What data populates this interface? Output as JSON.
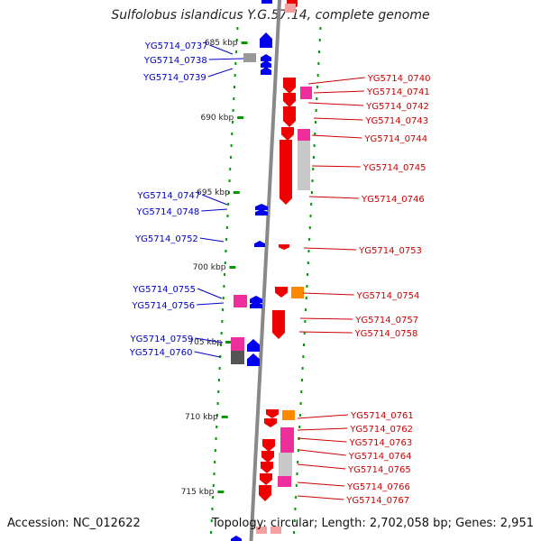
{
  "title": "Sulfolobus islandicus Y.G.57.14, complete genome",
  "footer": {
    "accession": "Accession: NC_012622",
    "summary": "Topology: circular; Length: 2,702,058 bp; Genes: 2,951"
  },
  "colors": {
    "plus_strand_label": "#0000cc",
    "minus_strand_label": "#cc0000",
    "plus_gene": "#0000ee",
    "minus_gene": "#ee0000",
    "rna_pink": "#ee2e9a",
    "misc_gray": "#999999",
    "orange": "#ff8800",
    "tick_green": "#009900",
    "backbone": "#888888"
  },
  "scale_labels": [
    "685 kbp",
    "690 kbp",
    "695 kbp",
    "700 kbp",
    "705 kbp",
    "710 kbp",
    "715 kbp"
  ],
  "left_genes": [
    "YG5714_0737",
    "YG5714_0738",
    "YG5714_0739",
    "YG5714_0747",
    "YG5714_0748",
    "YG5714_0752",
    "YG5714_0755",
    "YG5714_0756",
    "YG5714_0759",
    "YG5714_0760"
  ],
  "right_genes": [
    "YG5714_0740",
    "YG5714_0741",
    "YG5714_0742",
    "YG5714_0743",
    "YG5714_0744",
    "YG5714_0745",
    "YG5714_0746",
    "YG5714_0753",
    "YG5714_0754",
    "YG5714_0757",
    "YG5714_0758",
    "YG5714_0761",
    "YG5714_0762",
    "YG5714_0763",
    "YG5714_0764",
    "YG5714_0765",
    "YG5714_0766",
    "YG5714_0767"
  ]
}
